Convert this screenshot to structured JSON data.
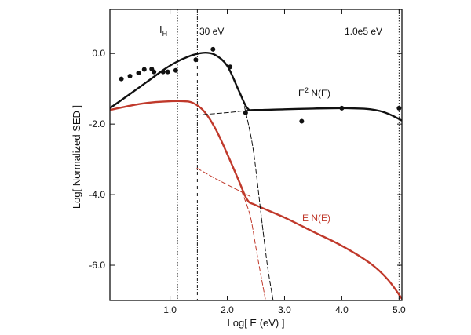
{
  "chart_data": {
    "type": "line",
    "title": "",
    "xlabel": "Log[ E (eV) ]",
    "ylabel": "Log[ Normalized SED ]",
    "xlim": [
      -0.05,
      5.05
    ],
    "ylim": [
      -7.0,
      1.25
    ],
    "x_ticks": [
      {
        "value": 1.0,
        "label": "1.0"
      },
      {
        "value": 2.0,
        "label": "2.0"
      },
      {
        "value": 3.0,
        "label": "3.0"
      },
      {
        "value": 4.0,
        "label": "4.0"
      },
      {
        "value": 5.0,
        "label": "5.0"
      }
    ],
    "y_ticks": [
      {
        "value": 0.0,
        "label": "0.0"
      },
      {
        "value": -2.0,
        "label": "-2.0"
      },
      {
        "value": -4.0,
        "label": "-4.0"
      },
      {
        "value": -6.0,
        "label": "-6.0"
      }
    ],
    "vlines": [
      {
        "name": "I_H",
        "x": 1.13,
        "label_main": "I",
        "label_sub": "H",
        "style": "dotted"
      },
      {
        "name": "30 eV",
        "x": 1.477,
        "label_main": "30 eV",
        "label_sub": "",
        "style": "dashdot"
      },
      {
        "name": "1.0e5 eV",
        "x": 5.0,
        "label_main": "1.0e5 eV",
        "label_sub": "",
        "style": "dotted"
      }
    ],
    "colors": {
      "black": "#111111",
      "red": "#c0392b"
    },
    "series": [
      {
        "name": "E^2 N(E)",
        "label_main": "E",
        "label_sup": "2",
        "label_rest": " N(E)",
        "color": "black",
        "style": "solid",
        "x": [
          -0.05,
          0.3,
          0.6,
          0.9,
          1.1,
          1.3,
          1.5,
          1.65,
          1.8,
          2.0,
          2.2,
          2.35,
          2.5,
          3.0,
          3.5,
          4.0,
          4.5,
          4.8,
          5.05
        ],
        "y": [
          -1.55,
          -1.15,
          -0.8,
          -0.45,
          -0.25,
          -0.1,
          0.0,
          0.02,
          -0.05,
          -0.35,
          -1.05,
          -1.55,
          -1.6,
          -1.58,
          -1.56,
          -1.55,
          -1.58,
          -1.7,
          -1.9
        ]
      },
      {
        "name": "E N(E)",
        "label_main": "E N(E)",
        "color": "red",
        "style": "solid",
        "x": [
          -0.05,
          0.3,
          0.6,
          0.9,
          1.2,
          1.4,
          1.6,
          1.8,
          2.0,
          2.2,
          2.35,
          2.5,
          3.0,
          3.5,
          4.0,
          4.5,
          4.8,
          5.05
        ],
        "y": [
          -1.6,
          -1.48,
          -1.4,
          -1.36,
          -1.35,
          -1.4,
          -1.65,
          -2.15,
          -2.85,
          -3.6,
          -4.15,
          -4.3,
          -4.65,
          -5.05,
          -5.45,
          -5.95,
          -6.4,
          -6.95
        ]
      },
      {
        "name": "black dashed high-energy extension",
        "color": "black",
        "style": "dashed",
        "x": [
          2.3,
          2.45,
          2.6,
          2.7,
          2.8
        ],
        "y": [
          -1.5,
          -2.7,
          -4.7,
          -6.0,
          -7.0
        ]
      },
      {
        "name": "black dashed power-law extension",
        "color": "black",
        "style": "dashed",
        "x": [
          1.45,
          1.8,
          2.1,
          2.4
        ],
        "y": [
          -1.75,
          -1.7,
          -1.66,
          -1.6
        ]
      },
      {
        "name": "red dashed high-energy extension",
        "color": "red",
        "style": "dashed",
        "x": [
          2.25,
          2.4,
          2.5,
          2.6,
          2.67
        ],
        "y": [
          -3.9,
          -4.6,
          -5.5,
          -6.4,
          -7.0
        ]
      },
      {
        "name": "red dashed power-law extension",
        "color": "red",
        "style": "dashed",
        "x": [
          1.47,
          1.8,
          2.1,
          2.4
        ],
        "y": [
          -3.25,
          -3.55,
          -3.8,
          -4.05
        ]
      }
    ],
    "scatter": [
      {
        "x": 0.15,
        "y": -0.72
      },
      {
        "x": 0.3,
        "y": -0.64
      },
      {
        "x": 0.45,
        "y": -0.55
      },
      {
        "x": 0.55,
        "y": -0.45
      },
      {
        "x": 0.68,
        "y": -0.44
      },
      {
        "x": 0.72,
        "y": -0.52
      },
      {
        "x": 0.88,
        "y": -0.52
      },
      {
        "x": 0.96,
        "y": -0.52
      },
      {
        "x": 1.1,
        "y": -0.48
      },
      {
        "x": 1.45,
        "y": -0.18
      },
      {
        "x": 1.75,
        "y": 0.12
      },
      {
        "x": 2.05,
        "y": -0.38
      },
      {
        "x": 2.32,
        "y": -1.68
      },
      {
        "x": 3.3,
        "y": -1.92
      },
      {
        "x": 4.0,
        "y": -1.55
      },
      {
        "x": 5.0,
        "y": -1.55
      }
    ]
  }
}
